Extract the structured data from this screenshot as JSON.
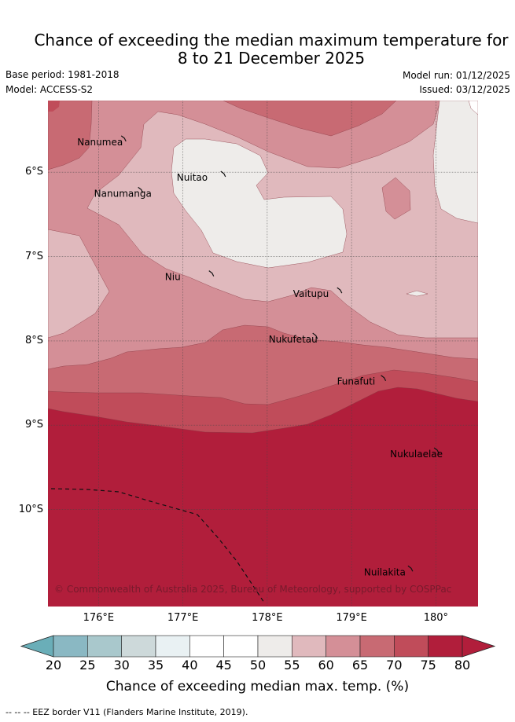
{
  "header": {
    "title_line1": "Chance of exceeding the median maximum temperature for",
    "title_line2": "8 to 21 December 2025",
    "base_period": "Base period: 1981-2018",
    "model": "Model: ACCESS-S2",
    "model_run": "Model run: 01/12/2025",
    "issued": "Issued: 03/12/2025"
  },
  "map": {
    "lat_ticks": [
      "6°S",
      "7°S",
      "8°S",
      "9°S",
      "10°S"
    ],
    "lon_ticks": [
      "176°E",
      "177°E",
      "178°E",
      "179°E",
      "180°"
    ],
    "islands": [
      {
        "name": "Nanumea",
        "lon": 176.12,
        "lat": -5.68
      },
      {
        "name": "Nuitao",
        "lon": 177.3,
        "lat": -6.1
      },
      {
        "name": "Nanumanga",
        "lon": 176.32,
        "lat": -6.29
      },
      {
        "name": "Niu",
        "lon": 177.16,
        "lat": -7.28
      },
      {
        "name": "Vaitupu",
        "lon": 178.68,
        "lat": -7.48
      },
      {
        "name": "Nukufetau",
        "lon": 178.39,
        "lat": -8.02
      },
      {
        "name": "Funafuti",
        "lon": 179.2,
        "lat": -8.52
      },
      {
        "name": "Nukulaelae",
        "lon": 179.83,
        "lat": -9.38
      },
      {
        "name": "Nuilakita",
        "lon": 179.52,
        "lat": -10.78
      }
    ],
    "copyright": "© Commonwealth of Australia 2025, Bureau of Meteorology, supported by COSPPac"
  },
  "colorbar": {
    "ticks": [
      "20",
      "25",
      "30",
      "35",
      "40",
      "45",
      "50",
      "55",
      "60",
      "65",
      "70",
      "75",
      "80"
    ],
    "colors": [
      "#6aaeb8",
      "#8ab8c3",
      "#a9c8cc",
      "#cdd9da",
      "#e9f1f3",
      "#ffffff",
      "#ffffff",
      "#eeecea",
      "#e0b9bd",
      "#d48f97",
      "#c86a73",
      "#c04c5a",
      "#b11e3b",
      "#b11e3b"
    ],
    "title": "Chance of exceeding median max. temp. (%)"
  },
  "footnote": "--  --  -- EEZ border V11 (Flanders Marine Institute, 2019)."
}
